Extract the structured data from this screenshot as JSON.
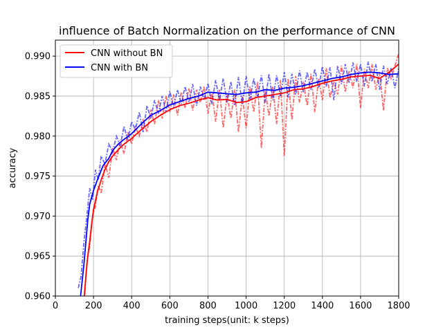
{
  "chart_data": {
    "type": "line",
    "title": "influence of Batch Normalization on the performance of CNN",
    "xlabel": "training steps(unit: k steps)",
    "ylabel": "accuracy",
    "xlim": [
      0,
      1800
    ],
    "ylim": [
      0.96,
      0.992
    ],
    "xticks": [
      0,
      200,
      400,
      600,
      800,
      1000,
      1200,
      1400,
      1600,
      1800
    ],
    "xtick_labels": [
      "0",
      "200",
      "400",
      "600",
      "800",
      "1000",
      "1200",
      "1400",
      "1600",
      "1800"
    ],
    "yticks": [
      0.96,
      0.965,
      0.97,
      0.975,
      0.98,
      0.985,
      0.99
    ],
    "ytick_labels": [
      "0.960",
      "0.965",
      "0.970",
      "0.975",
      "0.980",
      "0.985",
      "0.990"
    ],
    "grid": true,
    "legend_position": "top-left",
    "colors": {
      "without_bn": "#ff0000",
      "with_bn": "#0000ff"
    },
    "smoothed_series": [
      {
        "name": "CNN without BN",
        "color": "#ff0000",
        "x": [
          150,
          160,
          170,
          180,
          190,
          200,
          220,
          240,
          260,
          280,
          300,
          330,
          360,
          400,
          450,
          500,
          550,
          600,
          650,
          700,
          750,
          800,
          850,
          900,
          950,
          1000,
          1050,
          1100,
          1150,
          1200,
          1250,
          1300,
          1350,
          1400,
          1450,
          1500,
          1550,
          1600,
          1650,
          1700,
          1750,
          1800
        ],
        "y": [
          0.9595,
          0.9625,
          0.965,
          0.9668,
          0.969,
          0.9708,
          0.973,
          0.9745,
          0.9758,
          0.9768,
          0.9775,
          0.9783,
          0.979,
          0.9797,
          0.9808,
          0.9818,
          0.9826,
          0.9833,
          0.9838,
          0.9841,
          0.9845,
          0.9848,
          0.9845,
          0.9846,
          0.9842,
          0.9843,
          0.9848,
          0.985,
          0.9852,
          0.9854,
          0.9858,
          0.9859,
          0.9862,
          0.9866,
          0.9869,
          0.9871,
          0.9874,
          0.9875,
          0.9876,
          0.9872,
          0.988,
          0.989
        ]
      },
      {
        "name": "CNN with BN",
        "color": "#0000ff",
        "x": [
          130,
          150,
          170,
          180,
          200,
          220,
          250,
          280,
          300,
          330,
          360,
          400,
          450,
          500,
          550,
          600,
          650,
          700,
          750,
          800,
          850,
          900,
          950,
          1000,
          1050,
          1100,
          1150,
          1200,
          1250,
          1300,
          1350,
          1400,
          1450,
          1500,
          1550,
          1600,
          1650,
          1700,
          1750,
          1800
        ],
        "y": [
          0.9595,
          0.964,
          0.9695,
          0.9715,
          0.9732,
          0.9745,
          0.9763,
          0.9772,
          0.9782,
          0.979,
          0.9796,
          0.9803,
          0.9815,
          0.9826,
          0.9832,
          0.9839,
          0.9843,
          0.9847,
          0.985,
          0.9855,
          0.9854,
          0.9853,
          0.9852,
          0.9854,
          0.9855,
          0.9858,
          0.9857,
          0.986,
          0.9861,
          0.9863,
          0.9866,
          0.9869,
          0.9872,
          0.9874,
          0.9877,
          0.9879,
          0.988,
          0.9879,
          0.9877,
          0.9878
        ]
      }
    ],
    "raw_series": [
      {
        "color": "#ff0000",
        "alpha": 0.6,
        "x": [
          150,
          165,
          180,
          195,
          210,
          225,
          240,
          260,
          280,
          300,
          320,
          340,
          360,
          380,
          400,
          420,
          440,
          460,
          480,
          500,
          520,
          540,
          560,
          580,
          600,
          620,
          640,
          660,
          680,
          700,
          720,
          740,
          760,
          780,
          800,
          820,
          840,
          860,
          880,
          900,
          920,
          940,
          960,
          980,
          1000,
          1020,
          1040,
          1060,
          1080,
          1100,
          1120,
          1140,
          1160,
          1180,
          1200,
          1220,
          1240,
          1260,
          1280,
          1300,
          1320,
          1340,
          1360,
          1380,
          1400,
          1420,
          1440,
          1460,
          1480,
          1500,
          1520,
          1540,
          1560,
          1580,
          1600,
          1620,
          1640,
          1660,
          1680,
          1700,
          1720,
          1740,
          1760,
          1780,
          1800
        ],
        "y": [
          0.9585,
          0.9642,
          0.9662,
          0.97,
          0.9712,
          0.9738,
          0.9728,
          0.9765,
          0.9748,
          0.9785,
          0.977,
          0.9795,
          0.9778,
          0.9805,
          0.979,
          0.9812,
          0.98,
          0.982,
          0.9805,
          0.9833,
          0.9815,
          0.9845,
          0.9822,
          0.985,
          0.983,
          0.9852,
          0.9826,
          0.9855,
          0.9835,
          0.986,
          0.9832,
          0.9858,
          0.9842,
          0.9862,
          0.9828,
          0.9855,
          0.9818,
          0.9858,
          0.981,
          0.9852,
          0.9822,
          0.9858,
          0.9805,
          0.985,
          0.981,
          0.9862,
          0.983,
          0.9868,
          0.9785,
          0.9858,
          0.9825,
          0.9862,
          0.9815,
          0.987,
          0.9775,
          0.9872,
          0.982,
          0.9875,
          0.9842,
          0.9868,
          0.9838,
          0.9878,
          0.983,
          0.9872,
          0.9845,
          0.9885,
          0.9848,
          0.9868,
          0.9852,
          0.9888,
          0.9855,
          0.9882,
          0.986,
          0.989,
          0.9835,
          0.9884,
          0.986,
          0.989,
          0.9858,
          0.988,
          0.9832,
          0.9885,
          0.9872,
          0.9888,
          0.9903
        ]
      },
      {
        "color": "#0000ff",
        "alpha": 0.6,
        "x": [
          120,
          135,
          150,
          165,
          180,
          195,
          210,
          225,
          240,
          260,
          280,
          300,
          320,
          340,
          360,
          380,
          400,
          420,
          440,
          460,
          480,
          500,
          520,
          540,
          560,
          580,
          600,
          620,
          640,
          660,
          680,
          700,
          720,
          740,
          760,
          780,
          800,
          820,
          840,
          860,
          880,
          900,
          920,
          940,
          960,
          980,
          1000,
          1020,
          1040,
          1060,
          1080,
          1100,
          1120,
          1140,
          1160,
          1180,
          1200,
          1220,
          1240,
          1260,
          1280,
          1300,
          1320,
          1340,
          1360,
          1380,
          1400,
          1420,
          1440,
          1460,
          1480,
          1500,
          1520,
          1540,
          1560,
          1580,
          1600,
          1620,
          1640,
          1660,
          1680,
          1700,
          1720,
          1740,
          1760,
          1780,
          1800
        ],
        "y": [
          0.961,
          0.9625,
          0.9668,
          0.97,
          0.9735,
          0.972,
          0.9758,
          0.9745,
          0.9775,
          0.9765,
          0.979,
          0.978,
          0.98,
          0.9788,
          0.9812,
          0.9795,
          0.9818,
          0.9808,
          0.983,
          0.9805,
          0.9838,
          0.9822,
          0.9845,
          0.9828,
          0.985,
          0.983,
          0.9856,
          0.9836,
          0.9858,
          0.984,
          0.9862,
          0.9842,
          0.9865,
          0.9838,
          0.9862,
          0.9845,
          0.9866,
          0.984,
          0.987,
          0.9845,
          0.9872,
          0.9842,
          0.9868,
          0.9838,
          0.9874,
          0.984,
          0.9875,
          0.9845,
          0.9872,
          0.9848,
          0.9876,
          0.9842,
          0.9878,
          0.9845,
          0.9876,
          0.985,
          0.988,
          0.9848,
          0.9878,
          0.9852,
          0.9882,
          0.9855,
          0.988,
          0.9858,
          0.9884,
          0.986,
          0.9887,
          0.9862,
          0.9886,
          0.9845,
          0.9888,
          0.9865,
          0.989,
          0.9866,
          0.9892,
          0.9868,
          0.989,
          0.9862,
          0.9893,
          0.9868,
          0.989,
          0.9858,
          0.9888,
          0.9865,
          0.9885,
          0.986,
          0.9885
        ]
      }
    ]
  }
}
